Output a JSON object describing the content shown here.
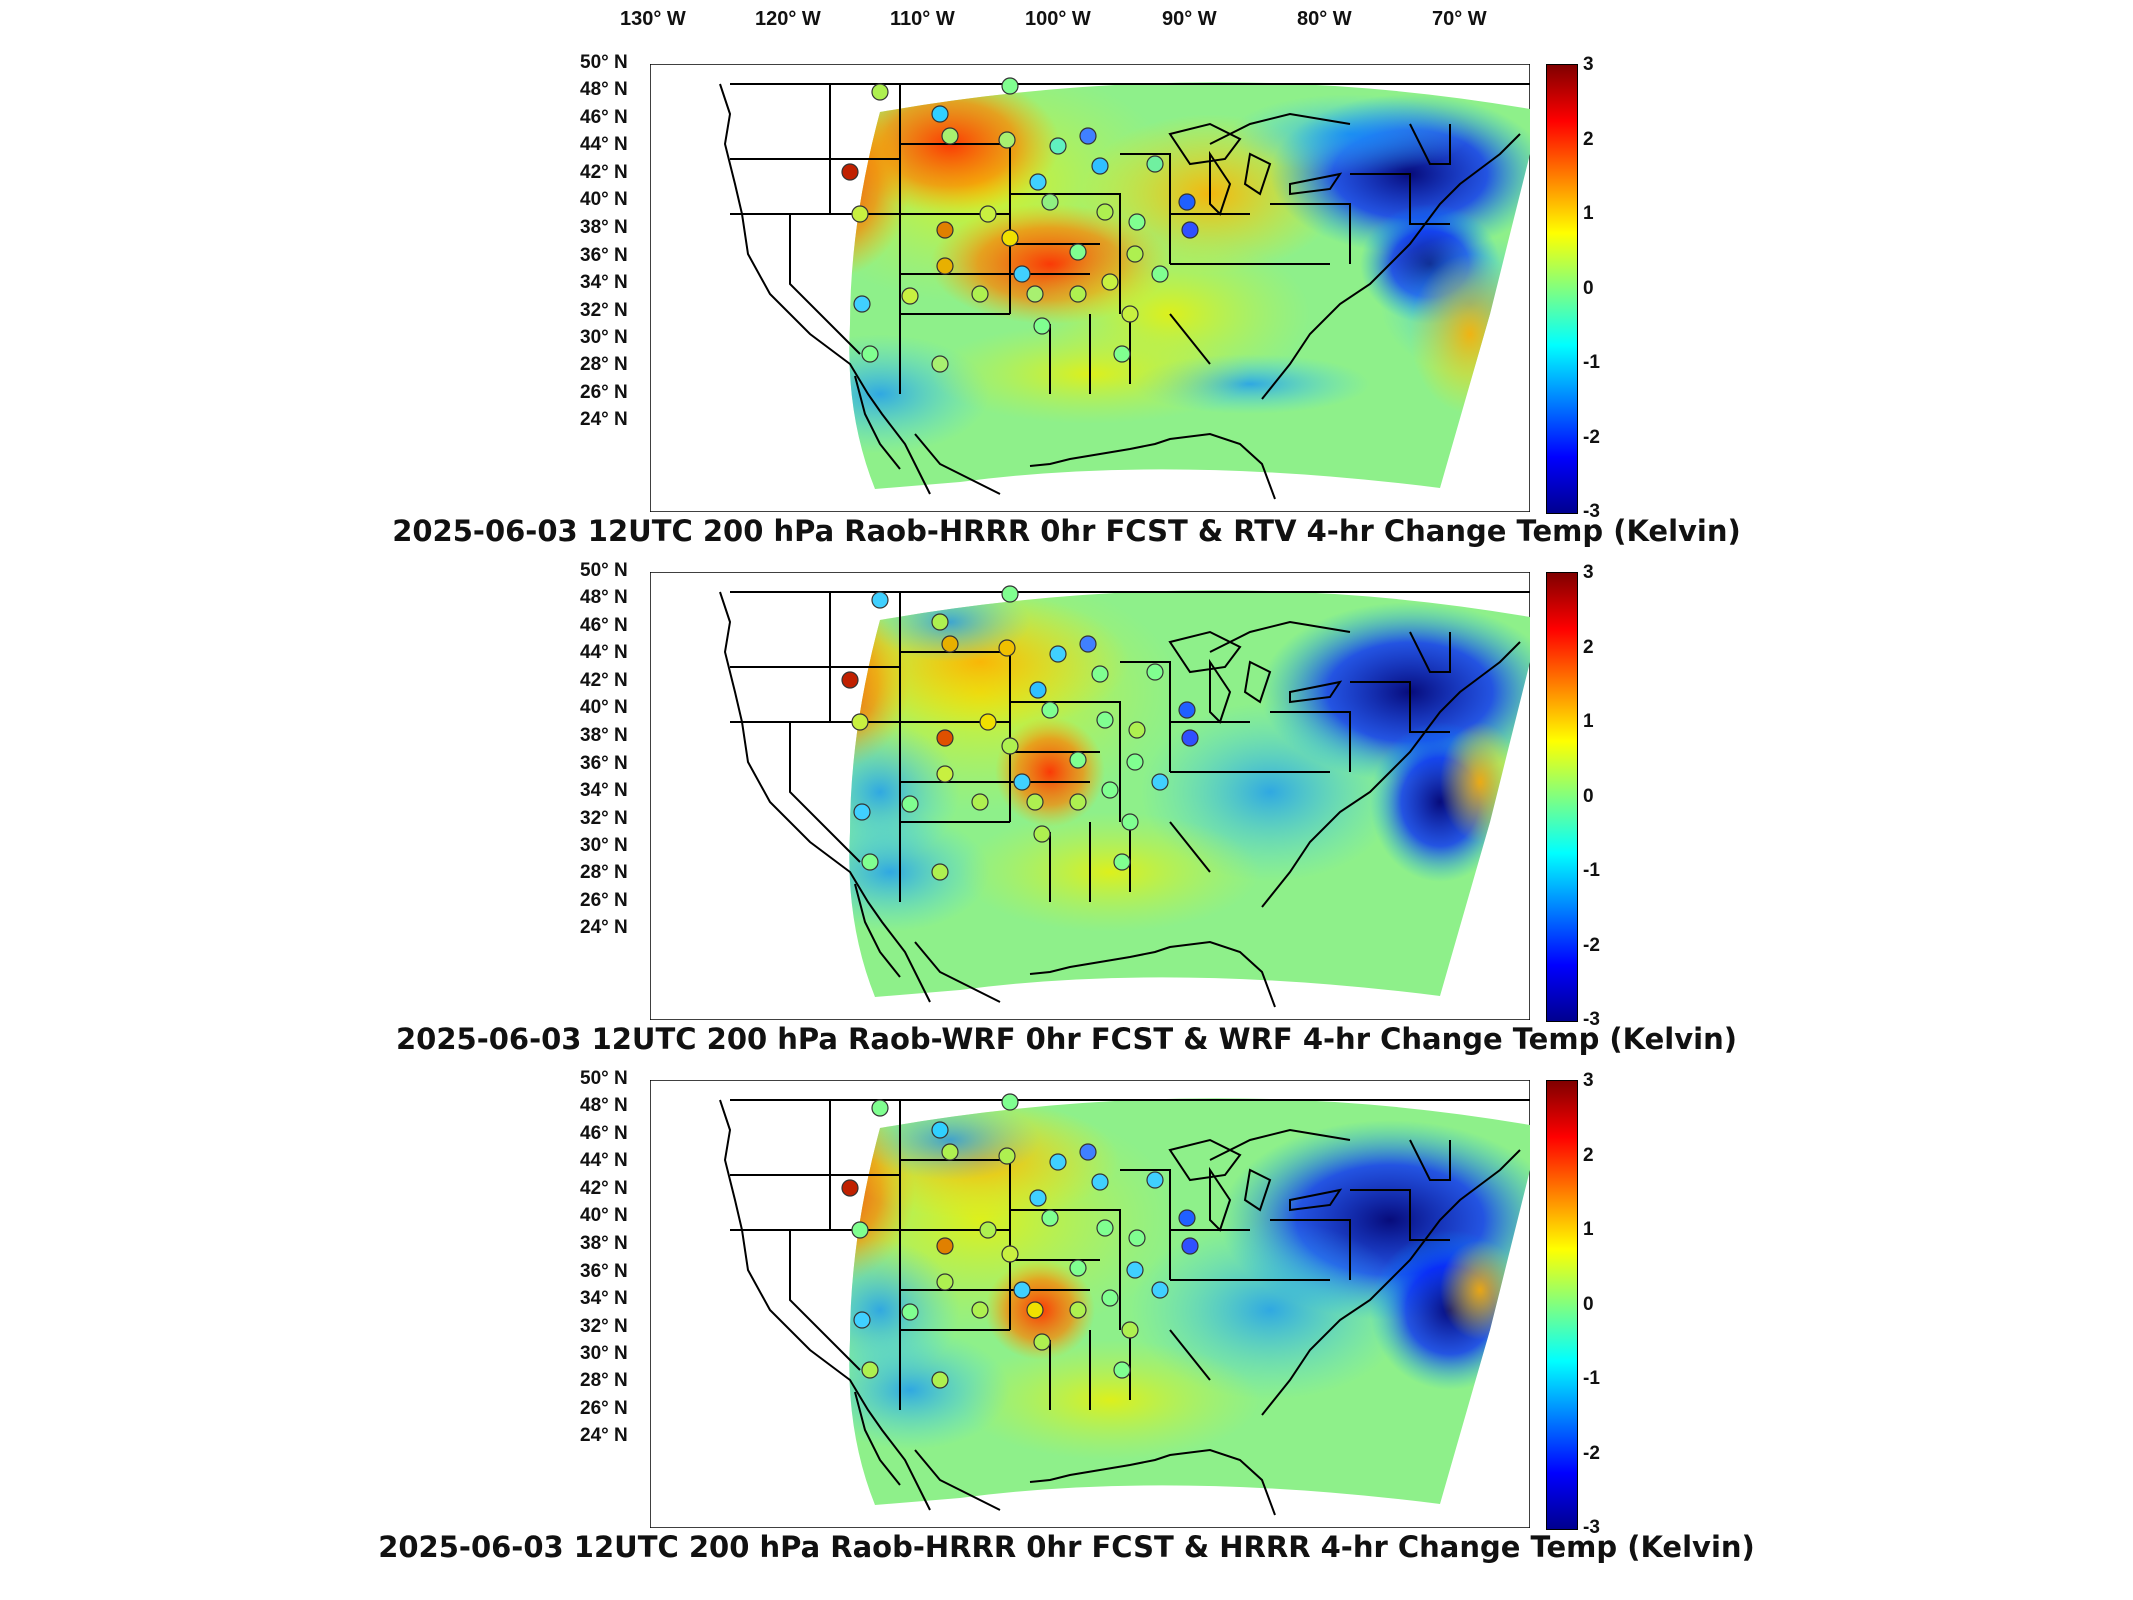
{
  "longitude_labels": [
    "130° W",
    "120° W",
    "110° W",
    "100° W",
    "90° W",
    "80° W",
    "70° W"
  ],
  "latitude_labels": [
    "50° N",
    "48° N",
    "46° N",
    "44° N",
    "42° N",
    "40° N",
    "38° N",
    "36° N",
    "34° N",
    "32° N",
    "30° N",
    "28° N",
    "26° N",
    "24° N"
  ],
  "colorbar": {
    "ticks": [
      "3",
      "2",
      "1",
      "0",
      "-1",
      "-2",
      "-3"
    ],
    "range": [
      -3,
      3
    ],
    "colors": [
      "#00008f",
      "#0000ff",
      "#0080ff",
      "#00ffff",
      "#80ff80",
      "#ffff00",
      "#ff8000",
      "#ff0000",
      "#800000"
    ]
  },
  "panels": [
    {
      "title": "2025-06-03 12UTC 200 hPa Raob-HRRR 0hr FCST & RTV 4-hr Change Temp (Kelvin)"
    },
    {
      "title": "2025-06-03 12UTC 200 hPa Raob-WRF 0hr FCST & WRF 4-hr Change Temp (Kelvin)"
    },
    {
      "title": "2025-06-03 12UTC 200 hPa Raob-HRRR 0hr FCST & HRRR 4-hr Change Temp (Kelvin)"
    }
  ]
}
